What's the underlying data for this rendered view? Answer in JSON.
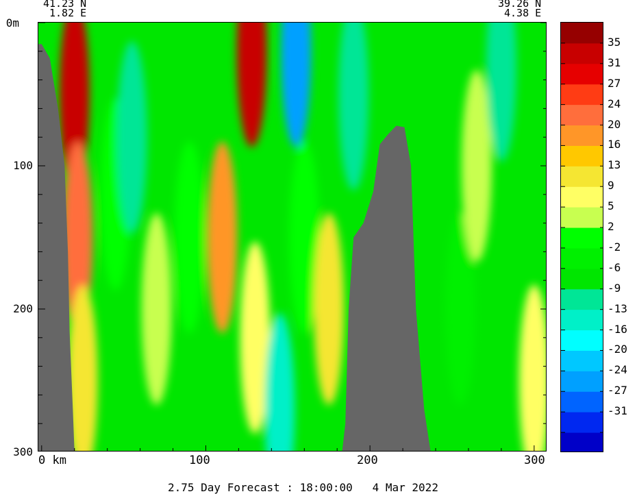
{
  "header": {
    "left_lat": "41.23 N",
    "left_lon": "1.82 E",
    "right_lat": "39.26 N",
    "right_lon": "4.38 E"
  },
  "footer": {
    "caption": "2.75 Day Forecast : 18:00:00   4 Mar 2022"
  },
  "colors": {
    "land": "#666666",
    "scale": [
      "#0000c8",
      "#0028f0",
      "#0064ff",
      "#00a0ff",
      "#00c8ff",
      "#00ffff",
      "#00f0c8",
      "#00e696",
      "#00e600",
      "#00f000",
      "#00ff00",
      "#c8ff50",
      "#ffff64",
      "#f5e632",
      "#ffc800",
      "#ff9628",
      "#ff6e3c",
      "#ff3c14",
      "#e60000",
      "#c80000",
      "#960000"
    ]
  },
  "chart_data": {
    "type": "heatmap",
    "title": "",
    "xlabel": "km",
    "ylabel": "",
    "x_ticks": [
      "0",
      "100",
      "200",
      "300"
    ],
    "x_tick_values": [
      0,
      100,
      200,
      300
    ],
    "y_ticks": [
      "0m",
      "100",
      "200",
      "300"
    ],
    "y_tick_values": [
      0,
      100,
      200,
      300
    ],
    "xlim": [
      -2,
      308
    ],
    "ylim": [
      0,
      300
    ],
    "colorbar_labels": [
      "35",
      "31",
      "27",
      "24",
      "20",
      "16",
      "13",
      "9",
      "5",
      "2",
      "-2",
      "-6",
      "-9",
      "-13",
      "-16",
      "-20",
      "-24",
      "-27",
      "-31"
    ],
    "colorbar_levels": [
      35,
      31,
      27,
      24,
      20,
      16,
      13,
      9,
      5,
      2,
      -2,
      -6,
      -9,
      -13,
      -16,
      -20,
      -24,
      -27,
      -31
    ],
    "colorbar_range": [
      -35,
      39
    ],
    "bathymetry": [
      {
        "km": 0,
        "depth": 15
      },
      {
        "km": 5,
        "depth": 25
      },
      {
        "km": 10,
        "depth": 60
      },
      {
        "km": 14,
        "depth": 100
      },
      {
        "km": 16,
        "depth": 160
      },
      {
        "km": 17,
        "depth": 215
      },
      {
        "km": 19,
        "depth": 270
      },
      {
        "km": 20,
        "depth": 300
      },
      {
        "km": 183,
        "depth": 300
      },
      {
        "km": 185,
        "depth": 280
      },
      {
        "km": 187,
        "depth": 200
      },
      {
        "km": 190,
        "depth": 150
      },
      {
        "km": 196,
        "depth": 140
      },
      {
        "km": 202,
        "depth": 118
      },
      {
        "km": 206,
        "depth": 85
      },
      {
        "km": 211,
        "depth": 78
      },
      {
        "km": 216,
        "depth": 72
      },
      {
        "km": 221,
        "depth": 73
      },
      {
        "km": 225,
        "depth": 100
      },
      {
        "km": 228,
        "depth": 200
      },
      {
        "km": 233,
        "depth": 270
      },
      {
        "km": 237,
        "depth": 300
      }
    ],
    "field_features": [
      {
        "km": 20,
        "depth": 50,
        "value": 33
      },
      {
        "km": 22,
        "depth": 150,
        "value": 22
      },
      {
        "km": 25,
        "depth": 250,
        "value": 14
      },
      {
        "km": 45,
        "depth": 120,
        "value": 3
      },
      {
        "km": 55,
        "depth": 80,
        "value": -9
      },
      {
        "km": 70,
        "depth": 200,
        "value": 7
      },
      {
        "km": 90,
        "depth": 150,
        "value": 2
      },
      {
        "km": 110,
        "depth": 150,
        "value": 18
      },
      {
        "km": 128,
        "depth": 20,
        "value": 35
      },
      {
        "km": 130,
        "depth": 220,
        "value": 9
      },
      {
        "km": 145,
        "depth": 270,
        "value": -12
      },
      {
        "km": 155,
        "depth": 20,
        "value": -24
      },
      {
        "km": 160,
        "depth": 150,
        "value": 2
      },
      {
        "km": 175,
        "depth": 200,
        "value": 12
      },
      {
        "km": 190,
        "depth": 50,
        "value": -8
      },
      {
        "km": 255,
        "depth": 200,
        "value": -3
      },
      {
        "km": 265,
        "depth": 100,
        "value": 5
      },
      {
        "km": 280,
        "depth": 30,
        "value": -9
      },
      {
        "km": 300,
        "depth": 250,
        "value": 9
      }
    ]
  }
}
